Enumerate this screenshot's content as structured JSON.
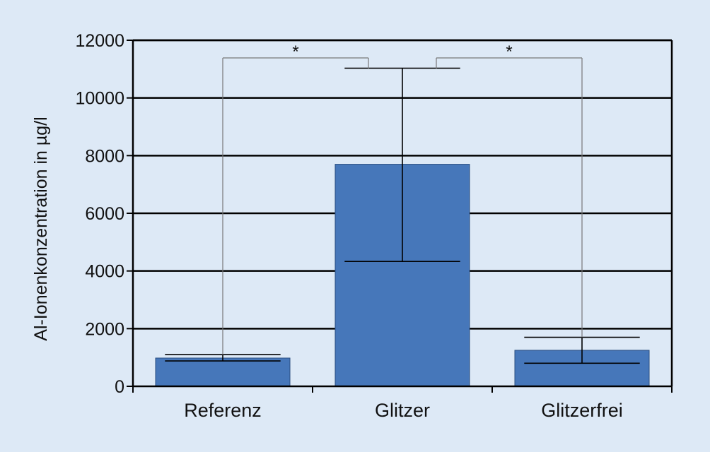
{
  "chart_data": {
    "type": "bar",
    "categories": [
      "Referenz",
      "Glitzer",
      "Glitzerfrei"
    ],
    "values": [
      980,
      7700,
      1250
    ],
    "error_low": [
      880,
      4330,
      800
    ],
    "error_high": [
      1100,
      11030,
      1700
    ],
    "ylabel": "Al-Ionenkonzentration in µg/l",
    "xlabel": "",
    "ylim": [
      0,
      12000
    ],
    "yticks": [
      0,
      2000,
      4000,
      6000,
      8000,
      10000,
      12000
    ],
    "grid": true,
    "significance": [
      {
        "from": 0,
        "to": 1,
        "label": "*"
      },
      {
        "from": 1,
        "to": 2,
        "label": "*"
      }
    ],
    "colors": {
      "bar": "#4677ba",
      "bar_edge": "#2a4e80",
      "background": "#dde9f6",
      "bracket": "#777777"
    }
  }
}
